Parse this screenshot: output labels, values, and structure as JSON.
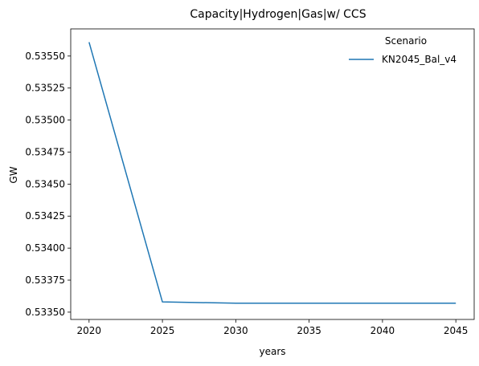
{
  "chart_data": {
    "type": "line",
    "title": "Capacity|Hydrogen|Gas|w/ CCS",
    "xlabel": "years",
    "ylabel": "GW",
    "x": [
      2020,
      2025,
      2030,
      2035,
      2040,
      2045
    ],
    "xticks": [
      "2020",
      "2025",
      "2030",
      "2035",
      "2040",
      "2045"
    ],
    "yticks": [
      "0.53350",
      "0.53375",
      "0.53400",
      "0.53425",
      "0.53450",
      "0.53475",
      "0.53500",
      "0.53525",
      "0.53550"
    ],
    "ytick_values": [
      0.5335,
      0.53375,
      0.534,
      0.53425,
      0.5345,
      0.53475,
      0.535,
      0.53525,
      0.5355
    ],
    "xlim": [
      2018.75,
      2046.25
    ],
    "ylim": [
      0.533443,
      0.535712
    ],
    "grid": false,
    "legend": {
      "title": "Scenario",
      "position": "top-right"
    },
    "series": [
      {
        "name": "KN2045_Bal_v4",
        "color": "#1f77b4",
        "values": [
          0.535608,
          0.53358,
          0.53357,
          0.53357,
          0.53357,
          0.53357
        ]
      }
    ]
  }
}
